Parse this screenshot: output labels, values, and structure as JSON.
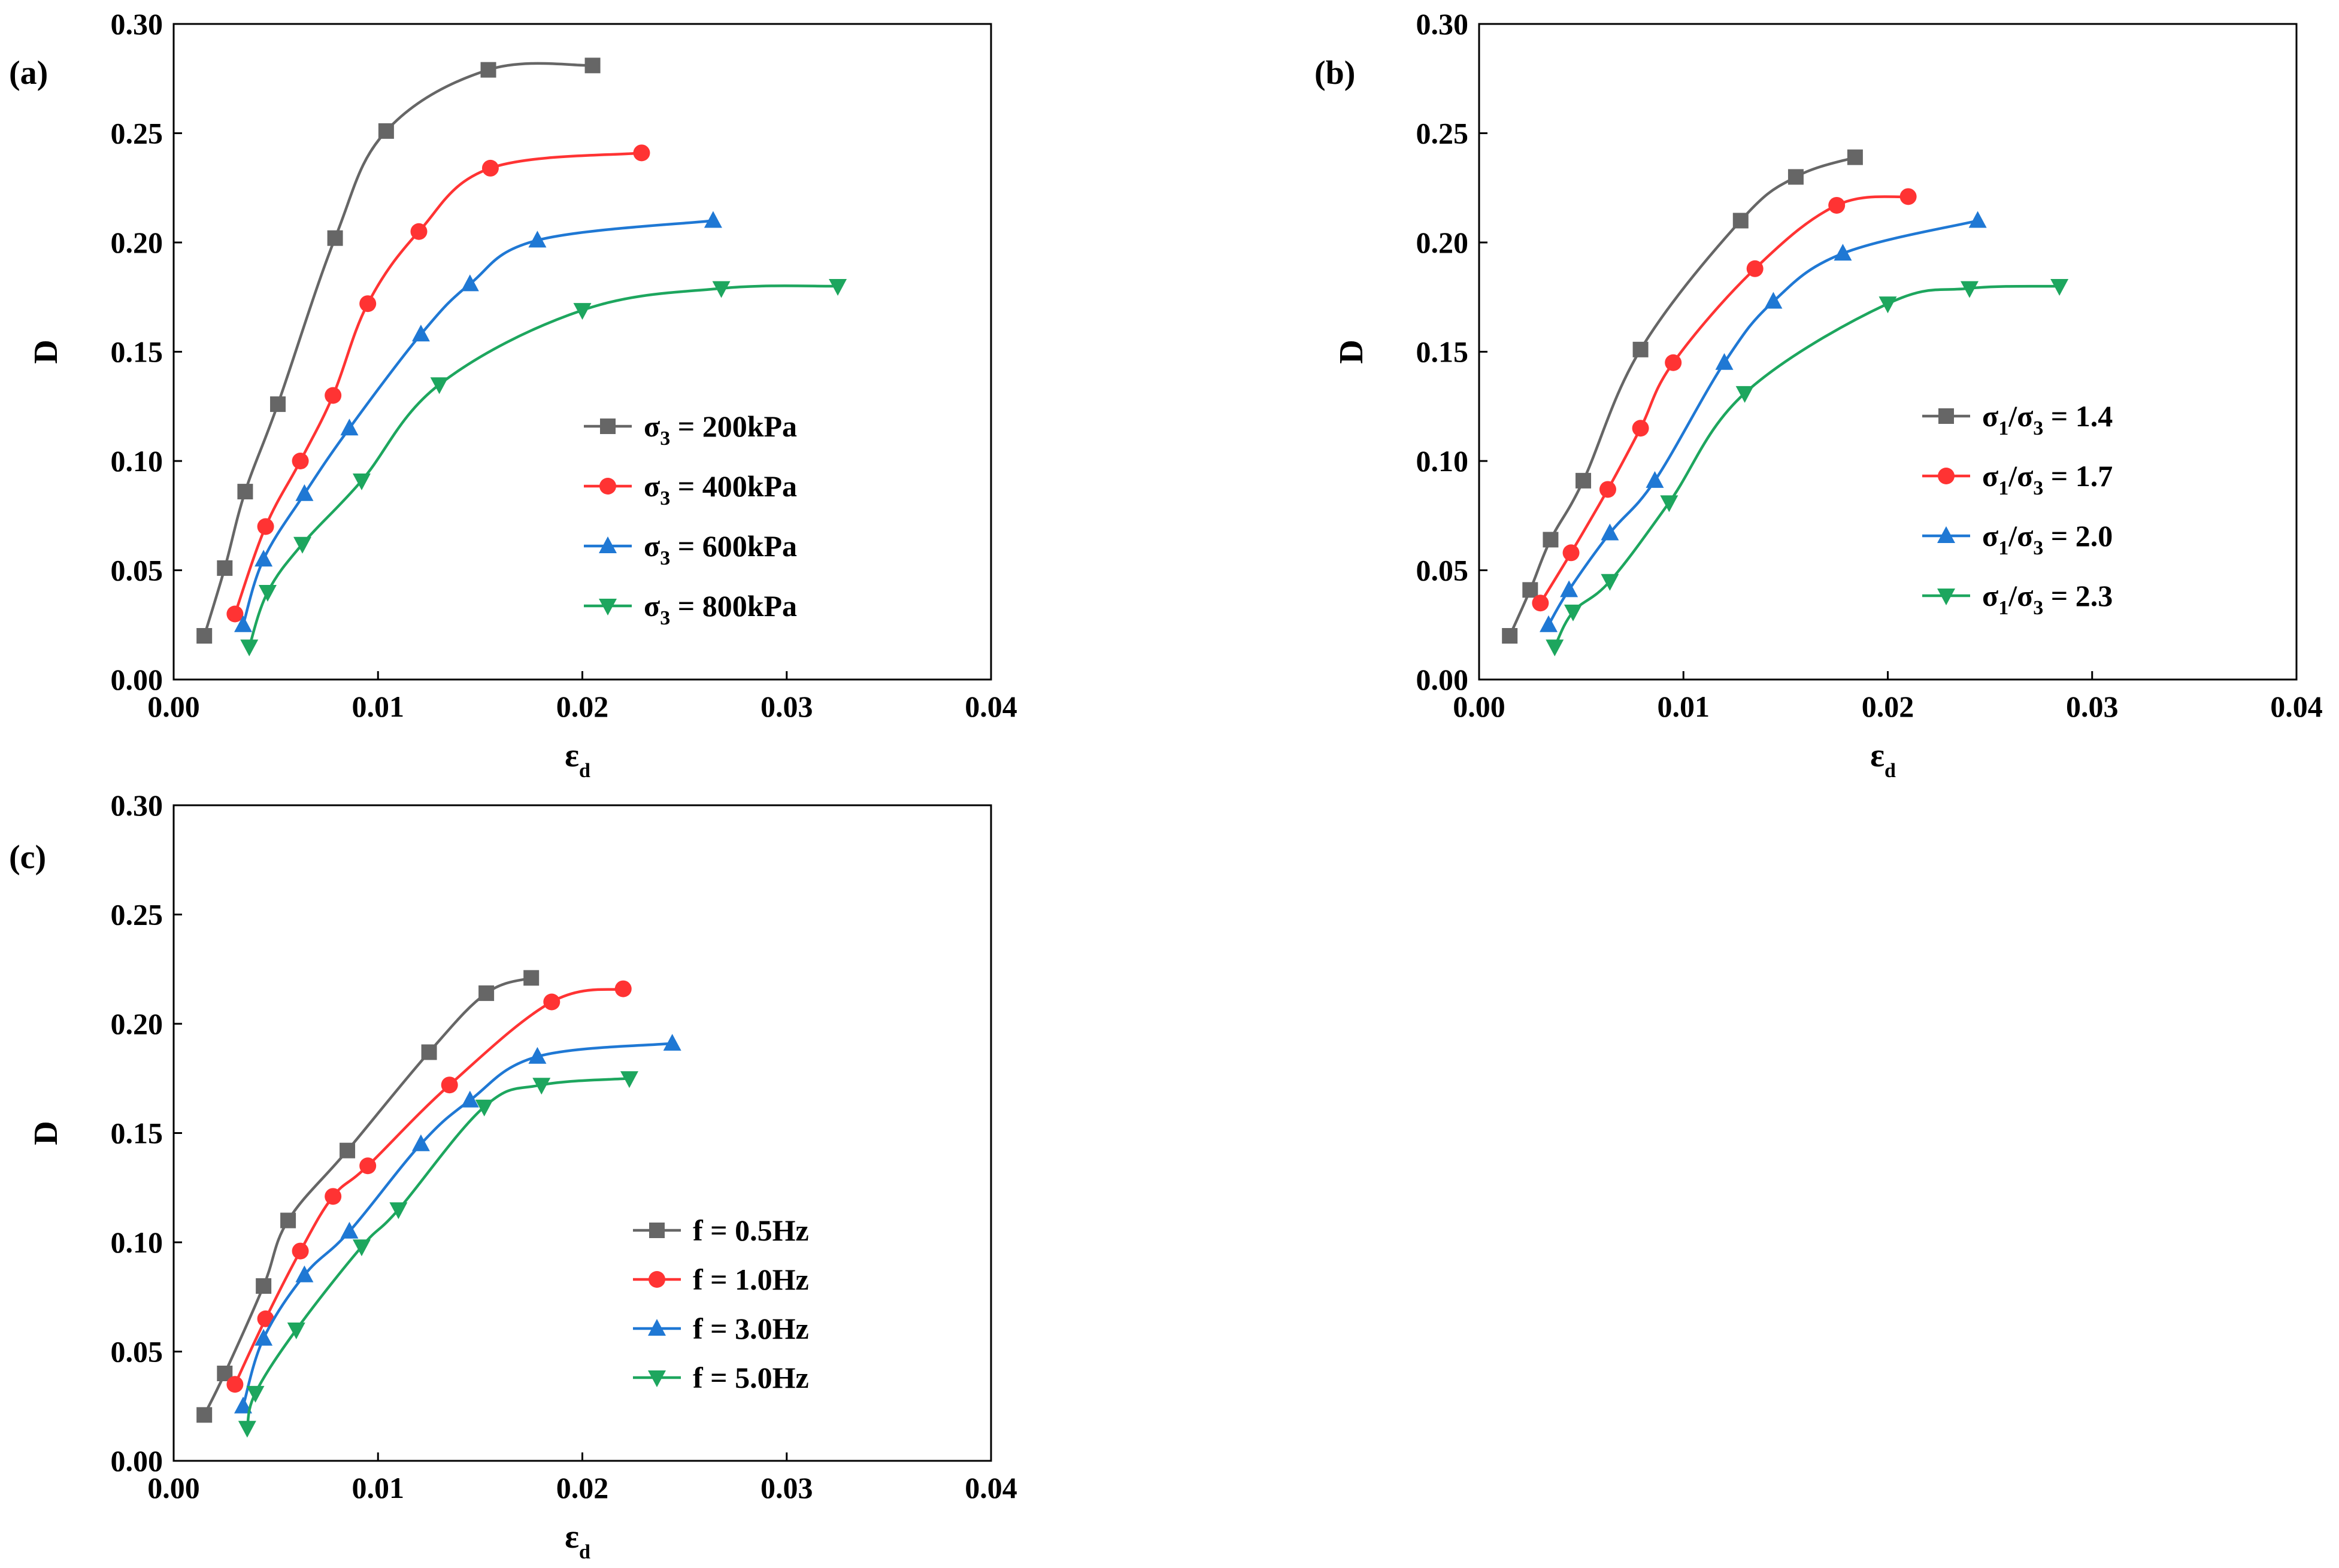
{
  "chart_data": [
    {
      "type": "line",
      "panel_label": "(a)",
      "xlabel": "ε",
      "xlabel_sub": "d",
      "ylabel": "D",
      "xlim": [
        0,
        0.04
      ],
      "ylim": [
        0,
        0.3
      ],
      "xticks": [
        "0.00",
        "0.01",
        "0.02",
        "0.03",
        "0.04"
      ],
      "yticks": [
        "0.00",
        "0.05",
        "0.10",
        "0.15",
        "0.20",
        "0.25",
        "0.30"
      ],
      "legend_position": "center-right",
      "series": [
        {
          "name": "σ3 = 200kPa",
          "label": [
            [
              "σ",
              ""
            ],
            [
              "3",
              "sub"
            ],
            [
              " = 200kPa",
              ""
            ]
          ],
          "color": "#666666",
          "marker": "square",
          "x": [
            0.0015,
            0.0025,
            0.0035,
            0.0051,
            0.0079,
            0.0104,
            0.0154,
            0.0205
          ],
          "y": [
            0.02,
            0.051,
            0.086,
            0.126,
            0.202,
            0.251,
            0.279,
            0.281
          ]
        },
        {
          "name": "σ3 = 400kPa",
          "label": [
            [
              "σ",
              ""
            ],
            [
              "3",
              "sub"
            ],
            [
              " = 400kPa",
              ""
            ]
          ],
          "color": "#FF3333",
          "marker": "circle",
          "x": [
            0.003,
            0.0045,
            0.0062,
            0.0078,
            0.0095,
            0.012,
            0.0155,
            0.0229
          ],
          "y": [
            0.03,
            0.07,
            0.1,
            0.13,
            0.172,
            0.205,
            0.234,
            0.241
          ]
        },
        {
          "name": "σ3 = 600kPa",
          "label": [
            [
              "σ",
              ""
            ],
            [
              "3",
              "sub"
            ],
            [
              " = 600kPa",
              ""
            ]
          ],
          "color": "#1F78D4",
          "marker": "triangle-up",
          "x": [
            0.0034,
            0.0044,
            0.0064,
            0.0086,
            0.0121,
            0.0145,
            0.0178,
            0.0264
          ],
          "y": [
            0.025,
            0.055,
            0.085,
            0.115,
            0.158,
            0.181,
            0.201,
            0.21
          ]
        },
        {
          "name": "σ3 = 800kPa",
          "label": [
            [
              "σ",
              ""
            ],
            [
              "3",
              "sub"
            ],
            [
              " = 800kPa",
              ""
            ]
          ],
          "color": "#1DA65E",
          "marker": "triangle-down",
          "x": [
            0.0037,
            0.0046,
            0.0063,
            0.0092,
            0.013,
            0.02,
            0.0268,
            0.0325
          ],
          "y": [
            0.015,
            0.04,
            0.062,
            0.091,
            0.135,
            0.169,
            0.179,
            0.18
          ]
        }
      ]
    },
    {
      "type": "line",
      "panel_label": "(b)",
      "xlabel": "ε",
      "xlabel_sub": "d",
      "ylabel": "D",
      "xlim": [
        0,
        0.04
      ],
      "ylim": [
        0,
        0.3
      ],
      "xticks": [
        "0.00",
        "0.01",
        "0.02",
        "0.03",
        "0.04"
      ],
      "yticks": [
        "0.00",
        "0.05",
        "0.10",
        "0.15",
        "0.20",
        "0.25",
        "0.30"
      ],
      "legend_position": "center-right",
      "series": [
        {
          "name": "σ1/σ3 = 1.4",
          "label": [
            [
              "σ",
              ""
            ],
            [
              "1",
              "sub"
            ],
            [
              "/σ",
              ""
            ],
            [
              "3",
              "sub"
            ],
            [
              " = 1.4",
              ""
            ]
          ],
          "color": "#666666",
          "marker": "square",
          "x": [
            0.0015,
            0.0025,
            0.0035,
            0.0051,
            0.0079,
            0.0128,
            0.0155,
            0.0184
          ],
          "y": [
            0.02,
            0.041,
            0.064,
            0.091,
            0.151,
            0.21,
            0.23,
            0.239
          ]
        },
        {
          "name": "σ1/σ3 = 1.7",
          "label": [
            [
              "σ",
              ""
            ],
            [
              "1",
              "sub"
            ],
            [
              "/σ",
              ""
            ],
            [
              "3",
              "sub"
            ],
            [
              " = 1.7",
              ""
            ]
          ],
          "color": "#FF3333",
          "marker": "circle",
          "x": [
            0.003,
            0.0045,
            0.0063,
            0.0079,
            0.0095,
            0.0135,
            0.0175,
            0.021
          ],
          "y": [
            0.035,
            0.058,
            0.087,
            0.115,
            0.145,
            0.188,
            0.217,
            0.221
          ]
        },
        {
          "name": "σ1/σ3 = 2.0",
          "label": [
            [
              "σ",
              ""
            ],
            [
              "1",
              "sub"
            ],
            [
              "/σ",
              ""
            ],
            [
              "3",
              "sub"
            ],
            [
              " = 2.0",
              ""
            ]
          ],
          "color": "#1F78D4",
          "marker": "triangle-up",
          "x": [
            0.0034,
            0.0044,
            0.0064,
            0.0086,
            0.012,
            0.0144,
            0.0178,
            0.0244
          ],
          "y": [
            0.025,
            0.041,
            0.067,
            0.091,
            0.145,
            0.173,
            0.195,
            0.21
          ]
        },
        {
          "name": "σ1/σ3 = 2.3",
          "label": [
            [
              "σ",
              ""
            ],
            [
              "1",
              "sub"
            ],
            [
              "/σ",
              ""
            ],
            [
              "3",
              "sub"
            ],
            [
              " = 2.3",
              ""
            ]
          ],
          "color": "#1DA65E",
          "marker": "triangle-down",
          "x": [
            0.0037,
            0.0046,
            0.0064,
            0.0093,
            0.013,
            0.02,
            0.024,
            0.0284
          ],
          "y": [
            0.015,
            0.031,
            0.045,
            0.081,
            0.131,
            0.172,
            0.179,
            0.18
          ]
        }
      ]
    },
    {
      "type": "line",
      "panel_label": "(c)",
      "xlabel": "ε",
      "xlabel_sub": "d",
      "ylabel": "D",
      "xlim": [
        0,
        0.04
      ],
      "ylim": [
        0,
        0.3
      ],
      "xticks": [
        "0.00",
        "0.01",
        "0.02",
        "0.03",
        "0.04"
      ],
      "yticks": [
        "0.00",
        "0.05",
        "0.10",
        "0.15",
        "0.20",
        "0.25",
        "0.30"
      ],
      "legend_position": "center-right",
      "series": [
        {
          "name": "f = 0.5Hz",
          "label": [
            [
              "f = 0.5Hz",
              ""
            ]
          ],
          "color": "#666666",
          "marker": "square",
          "x": [
            0.0015,
            0.0025,
            0.0044,
            0.0056,
            0.0085,
            0.0125,
            0.0153,
            0.0175
          ],
          "y": [
            0.021,
            0.04,
            0.08,
            0.11,
            0.142,
            0.187,
            0.214,
            0.221
          ]
        },
        {
          "name": "f = 1.0Hz",
          "label": [
            [
              "f = 1.0Hz",
              ""
            ]
          ],
          "color": "#FF3333",
          "marker": "circle",
          "x": [
            0.003,
            0.0045,
            0.0062,
            0.0078,
            0.0095,
            0.0135,
            0.0185,
            0.022
          ],
          "y": [
            0.035,
            0.065,
            0.096,
            0.121,
            0.135,
            0.172,
            0.21,
            0.216
          ]
        },
        {
          "name": "f = 3.0Hz",
          "label": [
            [
              "f = 3.0Hz",
              ""
            ]
          ],
          "color": "#1F78D4",
          "marker": "triangle-up",
          "x": [
            0.0034,
            0.0044,
            0.0064,
            0.0086,
            0.0121,
            0.0145,
            0.0178,
            0.0244
          ],
          "y": [
            0.025,
            0.056,
            0.085,
            0.105,
            0.145,
            0.165,
            0.185,
            0.191
          ]
        },
        {
          "name": "f = 5.0Hz",
          "label": [
            [
              "f = 5.0Hz",
              ""
            ]
          ],
          "color": "#1DA65E",
          "marker": "triangle-down",
          "x": [
            0.0036,
            0.004,
            0.006,
            0.0092,
            0.011,
            0.0152,
            0.018,
            0.0223
          ],
          "y": [
            0.015,
            0.031,
            0.06,
            0.098,
            0.115,
            0.162,
            0.172,
            0.175
          ]
        }
      ]
    }
  ]
}
